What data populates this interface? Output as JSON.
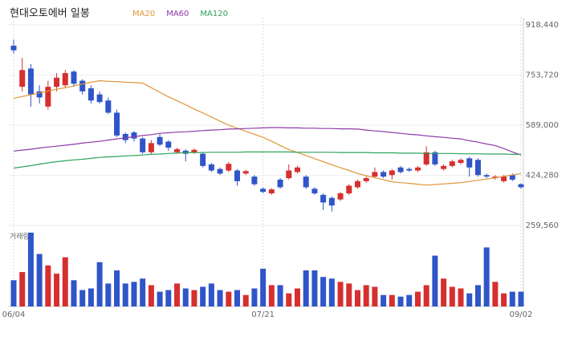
{
  "chart_data": {
    "type": "candlestick",
    "title": "현대오토에버 일봉",
    "volume_label": "거래량",
    "categories": [
      "06/04",
      null,
      null,
      null,
      null,
      null,
      null,
      null,
      null,
      null,
      null,
      null,
      null,
      null,
      null,
      null,
      null,
      null,
      null,
      null,
      null,
      null,
      null,
      null,
      null,
      null,
      null,
      null,
      null,
      "07/21",
      null,
      null,
      null,
      null,
      null,
      null,
      null,
      null,
      null,
      null,
      null,
      null,
      null,
      null,
      null,
      null,
      null,
      null,
      null,
      null,
      null,
      null,
      null,
      null,
      null,
      null,
      null,
      null,
      null,
      "09/02"
    ],
    "open": [
      850000,
      715000,
      775000,
      700000,
      650000,
      715000,
      720000,
      765000,
      735000,
      710000,
      690000,
      670000,
      630000,
      560000,
      565000,
      545000,
      500000,
      550000,
      535000,
      500000,
      505000,
      500000,
      495000,
      460000,
      445000,
      440000,
      440000,
      430000,
      420000,
      380000,
      365000,
      410000,
      415000,
      435000,
      420000,
      380000,
      360000,
      350000,
      345000,
      365000,
      385000,
      405000,
      420000,
      435000,
      425000,
      450000,
      445000,
      440000,
      460000,
      500000,
      445000,
      455000,
      465000,
      480000,
      475000,
      425000,
      415000,
      405000,
      425000,
      395000
    ],
    "high": [
      870000,
      810000,
      790000,
      720000,
      735000,
      760000,
      770000,
      770000,
      740000,
      720000,
      700000,
      680000,
      640000,
      565000,
      570000,
      550000,
      540000,
      560000,
      540000,
      515000,
      510000,
      512000,
      500000,
      465000,
      450000,
      468000,
      445000,
      442000,
      425000,
      385000,
      382000,
      415000,
      460000,
      455000,
      425000,
      385000,
      365000,
      355000,
      370000,
      395000,
      410000,
      420000,
      450000,
      440000,
      445000,
      455000,
      450000,
      455000,
      520000,
      505000,
      460000,
      475000,
      480000,
      485000,
      480000,
      430000,
      425000,
      425000,
      430000,
      398000
    ],
    "low": [
      825000,
      700000,
      650000,
      660000,
      640000,
      700000,
      710000,
      715000,
      690000,
      660000,
      660000,
      625000,
      550000,
      530000,
      535000,
      495000,
      495000,
      520000,
      505000,
      495000,
      470000,
      495000,
      450000,
      435000,
      425000,
      435000,
      390000,
      425000,
      390000,
      365000,
      360000,
      380000,
      410000,
      430000,
      380000,
      360000,
      310000,
      305000,
      340000,
      360000,
      380000,
      400000,
      415000,
      415000,
      410000,
      430000,
      435000,
      435000,
      455000,
      455000,
      440000,
      450000,
      460000,
      420000,
      420000,
      415000,
      410000,
      400000,
      405000,
      380000
    ],
    "close": [
      835000,
      770000,
      690000,
      680000,
      715000,
      745000,
      760000,
      725000,
      700000,
      670000,
      665000,
      630000,
      555000,
      540000,
      545000,
      500000,
      530000,
      525000,
      515000,
      510000,
      495000,
      508000,
      455000,
      440000,
      430000,
      462000,
      405000,
      438000,
      395000,
      370000,
      378000,
      385000,
      440000,
      450000,
      385000,
      365000,
      335000,
      325000,
      365000,
      390000,
      405000,
      415000,
      435000,
      420000,
      440000,
      435000,
      440000,
      450000,
      500000,
      460000,
      455000,
      470000,
      475000,
      450000,
      425000,
      420000,
      420000,
      420000,
      410000,
      385000
    ],
    "volume": [
      32,
      42,
      90,
      64,
      50,
      40,
      60,
      32,
      20,
      22,
      54,
      28,
      44,
      28,
      30,
      34,
      26,
      18,
      20,
      28,
      22,
      20,
      24,
      28,
      20,
      18,
      20,
      14,
      22,
      46,
      26,
      26,
      16,
      22,
      44,
      44,
      36,
      34,
      30,
      28,
      20,
      26,
      24,
      14,
      14,
      12,
      14,
      18,
      26,
      62,
      34,
      24,
      22,
      16,
      26,
      72,
      30,
      16,
      18,
      18
    ],
    "volume_lim": [
      0,
      90
    ],
    "up_color": "#d62f2f",
    "down_color": "#2f55c8",
    "series": [
      {
        "name": "MA20",
        "color": "#e0963a",
        "values": [
          677000,
          683000,
          689000,
          695000,
          701000,
          707000,
          712000,
          718000,
          724000,
          730000,
          735000,
          733000,
          732000,
          730000,
          729000,
          727000,
          712000,
          697000,
          682000,
          669000,
          656000,
          642000,
          629000,
          616000,
          602000,
          589000,
          579000,
          569000,
          559000,
          549000,
          536000,
          522000,
          509000,
          499000,
          489000,
          479000,
          469000,
          459000,
          449000,
          440000,
          430000,
          423000,
          416000,
          410000,
          403000,
          400000,
          398000,
          395000,
          392000,
          394000,
          396000,
          398000,
          400000,
          404000,
          408000,
          412000,
          416000,
          421000,
          425000,
          430000
        ]
      },
      {
        "name": "MA60",
        "color": "#8e3aa8",
        "values": [
          504000,
          507000,
          510000,
          514000,
          517000,
          520000,
          523000,
          526000,
          530000,
          533000,
          536000,
          540000,
          544000,
          547000,
          551000,
          555000,
          558000,
          562000,
          564000,
          566000,
          567000,
          569000,
          571000,
          573000,
          574000,
          576000,
          577000,
          578000,
          579000,
          580000,
          581000,
          581000,
          580000,
          580000,
          579000,
          579000,
          578000,
          578000,
          577000,
          577000,
          576000,
          573000,
          570000,
          568000,
          565000,
          562000,
          559000,
          557000,
          554000,
          551000,
          549000,
          546000,
          544000,
          538000,
          533000,
          527000,
          522000,
          512000,
          501000,
          491000
        ]
      },
      {
        "name": "MA120",
        "color": "#2ea35a",
        "values": [
          448000,
          452000,
          456000,
          461000,
          465000,
          469000,
          472000,
          475000,
          477000,
          480000,
          483000,
          485000,
          486000,
          488000,
          489000,
          491000,
          493000,
          494000,
          496000,
          497000,
          499000,
          499000,
          499000,
          500000,
          500000,
          500000,
          500000,
          501000,
          501000,
          501000,
          501000,
          501000,
          501000,
          500000,
          500000,
          500000,
          500000,
          500000,
          499000,
          499000,
          499000,
          499000,
          498000,
          498000,
          498000,
          497000,
          497000,
          497000,
          496000,
          496000,
          496000,
          496000,
          495000,
          495000,
          495000,
          494000,
          494000,
          494000,
          493000,
          493000
        ]
      }
    ],
    "ylim": [
      259560,
      918440
    ],
    "yticks": [
      {
        "value": 259560,
        "label": "259,560"
      },
      {
        "value": 424280,
        "label": "424,280"
      },
      {
        "value": 589000,
        "label": "589,000"
      },
      {
        "value": 753720,
        "label": "753,720"
      },
      {
        "value": 918440,
        "label": "918,440"
      }
    ],
    "grid": true
  }
}
